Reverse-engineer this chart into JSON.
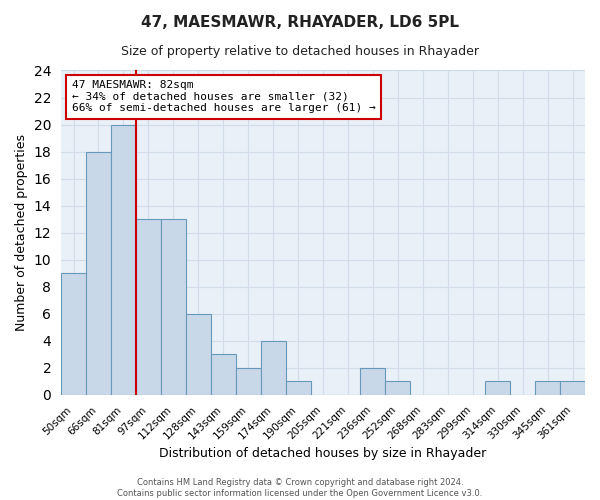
{
  "title": "47, MAESMAWR, RHAYADER, LD6 5PL",
  "subtitle": "Size of property relative to detached houses in Rhayader",
  "xlabel": "Distribution of detached houses by size in Rhayader",
  "ylabel": "Number of detached properties",
  "bar_labels": [
    "50sqm",
    "66sqm",
    "81sqm",
    "97sqm",
    "112sqm",
    "128sqm",
    "143sqm",
    "159sqm",
    "174sqm",
    "190sqm",
    "205sqm",
    "221sqm",
    "236sqm",
    "252sqm",
    "268sqm",
    "283sqm",
    "299sqm",
    "314sqm",
    "330sqm",
    "345sqm",
    "361sqm"
  ],
  "bar_values": [
    9,
    18,
    20,
    13,
    13,
    6,
    3,
    2,
    4,
    1,
    0,
    0,
    2,
    1,
    0,
    0,
    0,
    1,
    0,
    1,
    1
  ],
  "bar_color": "#c8d8e8",
  "bar_edge_color": "#6699bb",
  "vline_index": 2,
  "annotation_label": "47 MAESMAWR: 82sqm",
  "annotation_smaller": "← 34% of detached houses are smaller (32)",
  "annotation_larger": "66% of semi-detached houses are larger (61) →",
  "annotation_box_color": "#ffffff",
  "annotation_box_edge_color": "#cc0000",
  "vline_color": "#cc0000",
  "ylim": [
    0,
    24
  ],
  "yticks": [
    0,
    2,
    4,
    6,
    8,
    10,
    12,
    14,
    16,
    18,
    20,
    22,
    24
  ],
  "footer_line1": "Contains HM Land Registry data © Crown copyright and database right 2024.",
  "footer_line2": "Contains public sector information licensed under the Open Government Licence v3.0.",
  "grid_color": "#d0dce8",
  "background_color": "#ffffff",
  "plot_bg_color": "#eaf0f8"
}
